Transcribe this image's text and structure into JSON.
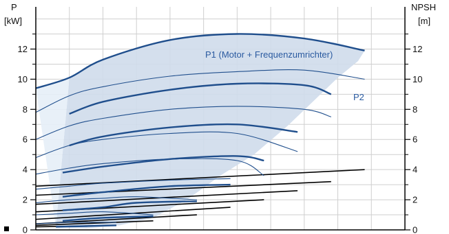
{
  "chart_data": {
    "type": "line",
    "left_axis": {
      "label_line1": "P",
      "label_line2": "[kW]",
      "ylim": [
        0,
        14.8
      ],
      "ticks": [
        0,
        2,
        4,
        6,
        8,
        10,
        12
      ]
    },
    "right_axis": {
      "label_line1": "NPSH",
      "label_line2": "[m]",
      "ylim": [
        0,
        14.8
      ],
      "ticks": [
        0,
        2,
        4,
        6,
        8,
        10,
        12
      ]
    },
    "xlim": [
      0,
      11
    ],
    "grid": true,
    "annotations": [
      {
        "text": "P1 (Motor + Frequenzumrichter)",
        "x": 5.3,
        "y": 12.6
      },
      {
        "text": "P2",
        "x": 9.75,
        "y": 9.1
      }
    ],
    "colors": {
      "area": "#cfdceb",
      "area_light": "#e6eef7",
      "p1": "#1f4e8c",
      "p2": "#1f4e8c",
      "npsh": "#000000",
      "grid": "#cfcfcf"
    },
    "area_polygon": [
      [
        0.6,
        0.2
      ],
      [
        1.0,
        10.1
      ],
      [
        2.0,
        11.3
      ],
      [
        3.0,
        12.1
      ],
      [
        4.0,
        12.6
      ],
      [
        5.0,
        12.9
      ],
      [
        6.0,
        13.0
      ],
      [
        7.0,
        12.9
      ],
      [
        8.0,
        12.7
      ],
      [
        9.0,
        12.4
      ],
      [
        9.8,
        11.9
      ],
      [
        9.6,
        11.2
      ],
      [
        9.0,
        10.1
      ],
      [
        8.3,
        8.6
      ],
      [
        7.5,
        6.9
      ],
      [
        6.5,
        5.0
      ],
      [
        5.5,
        3.6
      ],
      [
        4.5,
        2.0
      ],
      [
        3.5,
        0.8
      ],
      [
        2.5,
        0.3
      ],
      [
        1.5,
        0.1
      ]
    ],
    "light_polygon": [
      [
        0.6,
        0.2
      ],
      [
        0.0,
        9.4
      ],
      [
        1.0,
        10.1
      ]
    ],
    "p1_series": [
      {
        "x": [
          0,
          1,
          2,
          4,
          6,
          8,
          9.8
        ],
        "y": [
          9.4,
          10.1,
          11.3,
          12.6,
          13.0,
          12.7,
          11.9
        ]
      },
      {
        "x": [
          0,
          1,
          2,
          4,
          6,
          8,
          9.8
        ],
        "y": [
          7.8,
          8.9,
          9.5,
          10.2,
          10.5,
          10.6,
          10.0
        ]
      },
      {
        "x": [
          0,
          1,
          2,
          4,
          6,
          8,
          8.8
        ],
        "y": [
          6.0,
          6.9,
          7.4,
          8.0,
          8.2,
          8.0,
          7.5
        ]
      },
      {
        "x": [
          0,
          1,
          2,
          4,
          6,
          7.8
        ],
        "y": [
          4.8,
          5.6,
          6.0,
          6.4,
          6.4,
          5.2
        ]
      },
      {
        "x": [
          0,
          1,
          2,
          4,
          6,
          6.8
        ],
        "y": [
          3.7,
          4.1,
          4.4,
          4.7,
          4.6,
          3.6
        ]
      },
      {
        "x": [
          0,
          1,
          2,
          4,
          5.8
        ],
        "y": [
          2.7,
          2.9,
          3.1,
          3.3,
          3.4
        ]
      },
      {
        "x": [
          0,
          1,
          2,
          3,
          4.8
        ],
        "y": [
          1.8,
          2.0,
          2.1,
          2.2,
          2.0
        ]
      },
      {
        "x": [
          0,
          1,
          2,
          3.5
        ],
        "y": [
          1.0,
          1.1,
          1.2,
          1.0
        ]
      },
      {
        "x": [
          0,
          1,
          2.4
        ],
        "y": [
          0.4,
          0.5,
          0.5
        ]
      }
    ],
    "p2_series": [
      {
        "x": [
          1,
          2,
          4,
          6,
          8,
          8.8
        ],
        "y": [
          7.7,
          8.5,
          9.3,
          9.7,
          9.6,
          9.0
        ]
      },
      {
        "x": [
          1,
          2,
          4,
          6,
          7.8
        ],
        "y": [
          5.6,
          6.2,
          6.8,
          7.0,
          6.5
        ]
      },
      {
        "x": [
          0.8,
          2,
          4,
          6,
          6.8
        ],
        "y": [
          3.8,
          4.2,
          4.7,
          4.9,
          4.6
        ]
      },
      {
        "x": [
          0.8,
          2,
          4,
          5.8
        ],
        "y": [
          2.2,
          2.5,
          2.9,
          3.0
        ]
      },
      {
        "x": [
          0.8,
          2,
          3,
          4.8
        ],
        "y": [
          1.3,
          1.5,
          1.8,
          1.9
        ]
      },
      {
        "x": [
          0.8,
          2,
          3.5
        ],
        "y": [
          0.6,
          0.8,
          0.9
        ]
      },
      {
        "x": [
          0.6,
          2.4
        ],
        "y": [
          0.2,
          0.3
        ]
      }
    ],
    "npsh_series": [
      {
        "x": [
          0,
          9.8
        ],
        "y": [
          2.9,
          4.0
        ]
      },
      {
        "x": [
          0,
          8.8
        ],
        "y": [
          2.3,
          3.2
        ]
      },
      {
        "x": [
          0,
          7.8
        ],
        "y": [
          1.7,
          2.6
        ]
      },
      {
        "x": [
          0,
          6.8
        ],
        "y": [
          1.2,
          2.0
        ]
      },
      {
        "x": [
          0,
          5.8
        ],
        "y": [
          0.7,
          1.5
        ]
      },
      {
        "x": [
          0,
          4.8
        ],
        "y": [
          0.4,
          1.0
        ]
      },
      {
        "x": [
          0,
          3.5
        ],
        "y": [
          0.3,
          0.6
        ]
      },
      {
        "x": [
          0,
          2.4
        ],
        "y": [
          0.2,
          0.3
        ]
      }
    ]
  }
}
